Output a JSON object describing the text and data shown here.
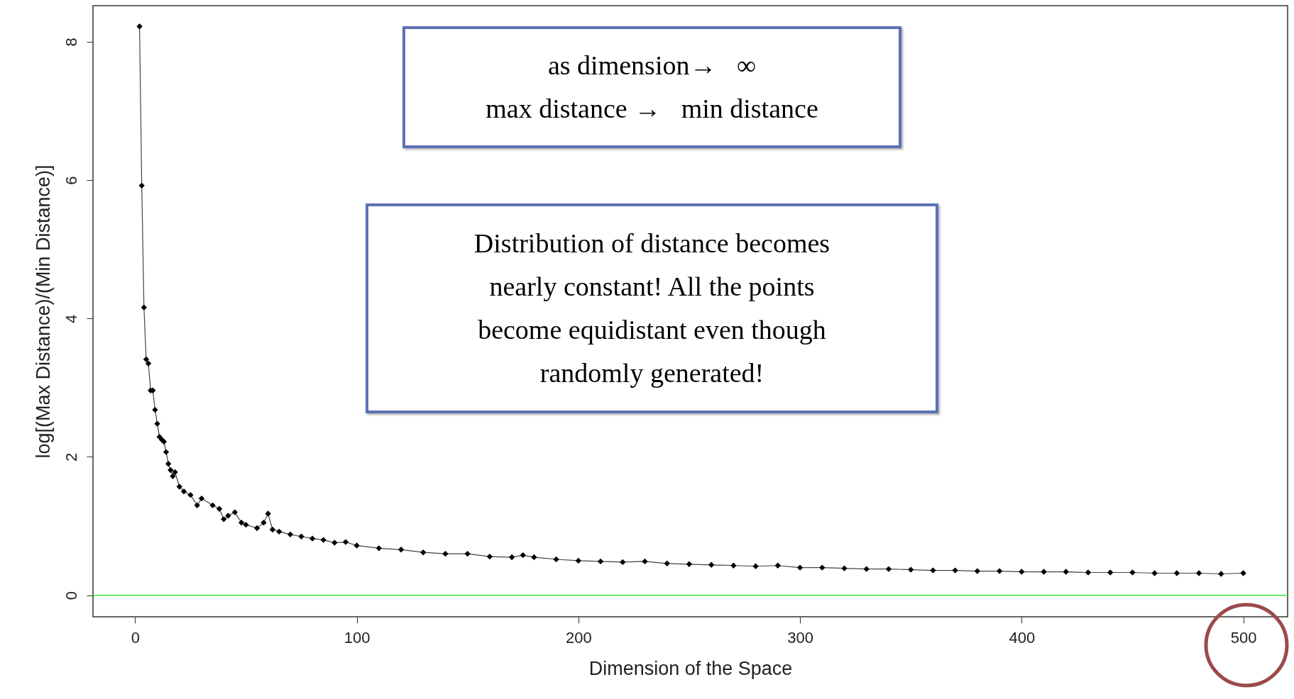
{
  "chart_data": {
    "type": "line",
    "xlabel": "Dimension of the Space",
    "ylabel": "log[(Max Distance)/(Min Distance)]",
    "xlim": [
      -19,
      520
    ],
    "ylim": [
      -0.31,
      8.52
    ],
    "xticks": [
      0,
      100,
      200,
      300,
      400,
      500
    ],
    "yticks": [
      0,
      2,
      4,
      6,
      8
    ],
    "grid": false,
    "marker": "diamond",
    "line_style": "solid",
    "series": [
      {
        "color": "#000000",
        "x": [
          2,
          3,
          4,
          5,
          6,
          7,
          8,
          9,
          10,
          11,
          12,
          13,
          14,
          15,
          16,
          17,
          18,
          20,
          22,
          25,
          28,
          30,
          35,
          38,
          40,
          42,
          45,
          48,
          50,
          55,
          58,
          60,
          62,
          65,
          70,
          75,
          80,
          85,
          90,
          95,
          100,
          110,
          120,
          130,
          140,
          150,
          160,
          170,
          175,
          180,
          190,
          200,
          210,
          220,
          230,
          240,
          250,
          260,
          270,
          280,
          290,
          300,
          310,
          320,
          330,
          340,
          350,
          360,
          370,
          380,
          390,
          400,
          410,
          420,
          430,
          440,
          450,
          460,
          470,
          480,
          490,
          500
        ],
        "values": [
          8.22,
          5.92,
          4.16,
          3.41,
          3.35,
          2.96,
          2.96,
          2.68,
          2.48,
          2.29,
          2.25,
          2.22,
          2.07,
          1.9,
          1.81,
          1.72,
          1.78,
          1.57,
          1.5,
          1.45,
          1.3,
          1.4,
          1.3,
          1.25,
          1.1,
          1.15,
          1.2,
          1.05,
          1.02,
          0.97,
          1.05,
          1.18,
          0.95,
          0.92,
          0.88,
          0.85,
          0.82,
          0.8,
          0.76,
          0.77,
          0.72,
          0.68,
          0.66,
          0.62,
          0.6,
          0.6,
          0.56,
          0.55,
          0.58,
          0.55,
          0.52,
          0.5,
          0.49,
          0.48,
          0.49,
          0.46,
          0.45,
          0.44,
          0.43,
          0.42,
          0.43,
          0.4,
          0.4,
          0.39,
          0.38,
          0.38,
          0.37,
          0.36,
          0.36,
          0.35,
          0.35,
          0.34,
          0.34,
          0.34,
          0.33,
          0.33,
          0.33,
          0.32,
          0.32,
          0.32,
          0.31,
          0.32
        ]
      }
    ],
    "ref_lines": [
      {
        "axis": "y",
        "value": 0,
        "color": "#33ee33"
      }
    ],
    "annotations": [
      "as dimension→   ∞\nmax distance →   min distance",
      "Distribution of distance becomes\nnearly constant! All the points\nbecome equidistant even though\nrandomly generated!"
    ]
  }
}
